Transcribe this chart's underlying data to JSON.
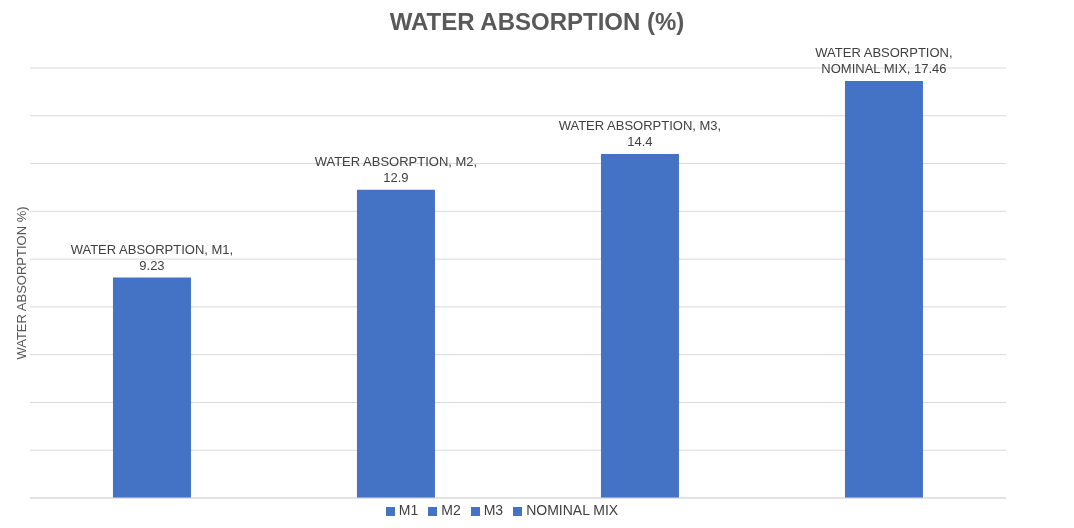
{
  "chart_data": {
    "type": "bar",
    "title": "WATER ABSORPTION (%)",
    "ylabel": "WATER ABSORPTION %)",
    "categories": [
      null,
      null,
      null,
      null
    ],
    "stacked": true,
    "series": [
      {
        "name": "M1",
        "color": "#4472c4",
        "values": [
          9.23,
          null,
          null,
          null
        ],
        "value_labels": [
          "WATER ABSORPTION, M1, 9.23",
          null,
          null,
          null
        ]
      },
      {
        "name": "M2",
        "color": "#4472c4",
        "values": [
          null,
          12.9,
          null,
          null
        ],
        "value_labels": [
          null,
          "WATER ABSORPTION, M2, 12.9",
          null,
          null
        ]
      },
      {
        "name": "M3",
        "color": "#4472c4",
        "values": [
          null,
          null,
          14.4,
          null
        ],
        "value_labels": [
          null,
          null,
          "WATER ABSORPTION, M3, 14.4",
          null
        ]
      },
      {
        "name": "NOMINAL MIX",
        "color": "#4472c4",
        "values": [
          null,
          null,
          null,
          17.46
        ],
        "value_labels": [
          null,
          null,
          null,
          "WATER ABSORPTION, NOMINAL MIX, 17.46"
        ]
      }
    ],
    "grid": "y",
    "legend": "bottom",
    "tick_labels": false
  }
}
